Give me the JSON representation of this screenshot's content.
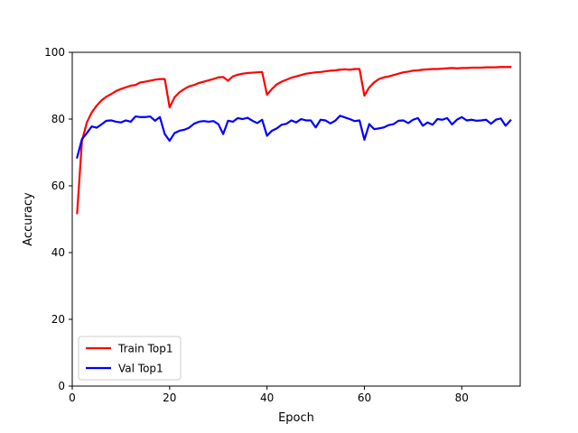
{
  "chart_data": {
    "type": "line",
    "xlabel": "Epoch",
    "ylabel": "Accuracy",
    "xlim": [
      0,
      92
    ],
    "ylim": [
      0,
      100
    ],
    "xticks": [
      0,
      20,
      40,
      60,
      80
    ],
    "yticks": [
      0,
      20,
      40,
      60,
      80,
      100
    ],
    "grid": false,
    "legend": "lower-left",
    "x": [
      1,
      2,
      3,
      4,
      5,
      6,
      7,
      8,
      9,
      10,
      11,
      12,
      13,
      14,
      15,
      16,
      17,
      18,
      19,
      20,
      21,
      22,
      23,
      24,
      25,
      26,
      27,
      28,
      29,
      30,
      31,
      32,
      33,
      34,
      35,
      36,
      37,
      38,
      39,
      40,
      41,
      42,
      43,
      44,
      45,
      46,
      47,
      48,
      49,
      50,
      51,
      52,
      53,
      54,
      55,
      56,
      57,
      58,
      59,
      60,
      61,
      62,
      63,
      64,
      65,
      66,
      67,
      68,
      69,
      70,
      71,
      72,
      73,
      74,
      75,
      76,
      77,
      78,
      79,
      80,
      81,
      82,
      83,
      84,
      85,
      86,
      87,
      88,
      89,
      90
    ],
    "series": [
      {
        "name": "Train Top1",
        "color": "#ff0000",
        "values": [
          51.8,
          73.5,
          79.0,
          82.0,
          84.0,
          85.6,
          86.7,
          87.5,
          88.4,
          89.0,
          89.5,
          90.0,
          90.2,
          91.0,
          91.2,
          91.5,
          91.8,
          92.0,
          92.0,
          83.5,
          86.5,
          88.0,
          89.0,
          89.8,
          90.2,
          90.8,
          91.2,
          91.6,
          92.0,
          92.5,
          92.6,
          91.5,
          92.8,
          93.3,
          93.6,
          93.8,
          93.9,
          94.0,
          94.1,
          87.3,
          89.0,
          90.4,
          91.2,
          91.8,
          92.4,
          92.8,
          93.2,
          93.6,
          93.8,
          94.0,
          94.1,
          94.3,
          94.5,
          94.6,
          94.8,
          94.9,
          94.8,
          95.0,
          95.0,
          87.0,
          89.5,
          91.0,
          92.0,
          92.5,
          92.8,
          93.2,
          93.6,
          94.0,
          94.2,
          94.5,
          94.6,
          94.8,
          94.9,
          95.0,
          95.0,
          95.1,
          95.2,
          95.3,
          95.2,
          95.3,
          95.3,
          95.4,
          95.4,
          95.4,
          95.5,
          95.5,
          95.5,
          95.6,
          95.6,
          95.6
        ]
      },
      {
        "name": "Val Top1",
        "color": "#0000ff",
        "values": [
          68.5,
          74.0,
          75.8,
          77.8,
          77.4,
          78.4,
          79.5,
          79.6,
          79.2,
          79.0,
          79.6,
          79.2,
          80.8,
          80.6,
          80.6,
          80.8,
          79.5,
          80.6,
          75.5,
          73.5,
          75.8,
          76.5,
          76.8,
          77.4,
          78.6,
          79.2,
          79.4,
          79.2,
          79.4,
          78.5,
          75.5,
          79.5,
          79.2,
          80.3,
          80.0,
          80.4,
          79.5,
          78.8,
          79.8,
          75.0,
          76.5,
          77.2,
          78.3,
          78.6,
          79.6,
          79.0,
          80.0,
          79.6,
          79.6,
          77.5,
          79.8,
          79.6,
          78.7,
          79.5,
          81.0,
          80.5,
          80.0,
          79.4,
          79.6,
          73.8,
          78.5,
          77.0,
          77.2,
          77.5,
          78.2,
          78.5,
          79.5,
          79.6,
          78.8,
          79.8,
          80.3,
          78.0,
          79.0,
          78.3,
          80.0,
          79.8,
          80.3,
          78.4,
          79.8,
          80.6,
          79.6,
          79.8,
          79.5,
          79.6,
          79.8,
          78.6,
          79.8,
          80.2,
          78.0,
          79.6
        ]
      }
    ]
  }
}
